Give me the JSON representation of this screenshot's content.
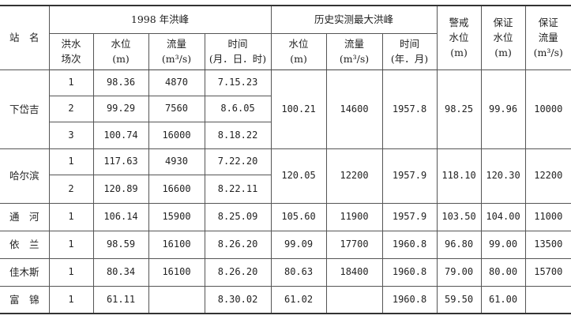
{
  "header": {
    "station": "站　名",
    "group_1998": "1998 年洪峰",
    "group_hist": "历史实测最大洪峰",
    "flood_no": "洪水\n场次",
    "level": "水位\n(m)",
    "flow": "流量\n(m³/s)",
    "time_1998": "时间\n(月．日．时)",
    "time_hist": "时间\n(年．月)",
    "warning_level": "警戒\n水位\n(m)",
    "guarantee_level": "保证\n水位\n(m)",
    "guarantee_flow": "保证\n流量\n(m³/s)"
  },
  "stations": [
    {
      "name": "下岱吉",
      "floods": [
        {
          "no": "1",
          "level": "98.36",
          "flow": "4870",
          "time": "7.15.23"
        },
        {
          "no": "2",
          "level": "99.29",
          "flow": "7560",
          "time": "8.6.05"
        },
        {
          "no": "3",
          "level": "100.74",
          "flow": "16000",
          "time": "8.18.22"
        }
      ],
      "hist_level": "100.21",
      "hist_flow": "14600",
      "hist_time": "1957.8",
      "warning": "98.25",
      "guarantee_level": "99.96",
      "guarantee_flow": "10000"
    },
    {
      "name": "哈尔滨",
      "floods": [
        {
          "no": "1",
          "level": "117.63",
          "flow": "4930",
          "time": "7.22.20"
        },
        {
          "no": "2",
          "level": "120.89",
          "flow": "16600",
          "time": "8.22.11"
        }
      ],
      "hist_level": "120.05",
      "hist_flow": "12200",
      "hist_time": "1957.9",
      "warning": "118.10",
      "guarantee_level": "120.30",
      "guarantee_flow": "12200"
    },
    {
      "name": "通　河",
      "floods": [
        {
          "no": "1",
          "level": "106.14",
          "flow": "15900",
          "time": "8.25.09"
        }
      ],
      "hist_level": "105.60",
      "hist_flow": "11900",
      "hist_time": "1957.9",
      "warning": "103.50",
      "guarantee_level": "104.00",
      "guarantee_flow": "11000"
    },
    {
      "name": "依　兰",
      "floods": [
        {
          "no": "1",
          "level": "98.59",
          "flow": "16100",
          "time": "8.26.20"
        }
      ],
      "hist_level": "99.09",
      "hist_flow": "17700",
      "hist_time": "1960.8",
      "warning": "96.80",
      "guarantee_level": "99.00",
      "guarantee_flow": "13500"
    },
    {
      "name": "佳木斯",
      "floods": [
        {
          "no": "1",
          "level": "80.34",
          "flow": "16100",
          "time": "8.26.20"
        }
      ],
      "hist_level": "80.63",
      "hist_flow": "18400",
      "hist_time": "1960.8",
      "warning": "79.00",
      "guarantee_level": "80.00",
      "guarantee_flow": "15700"
    },
    {
      "name": "富　锦",
      "floods": [
        {
          "no": "1",
          "level": "61.11",
          "flow": "",
          "time": "8.30.02"
        }
      ],
      "hist_level": "61.02",
      "hist_flow": "",
      "hist_time": "1960.8",
      "warning": "59.50",
      "guarantee_level": "61.00",
      "guarantee_flow": ""
    }
  ]
}
